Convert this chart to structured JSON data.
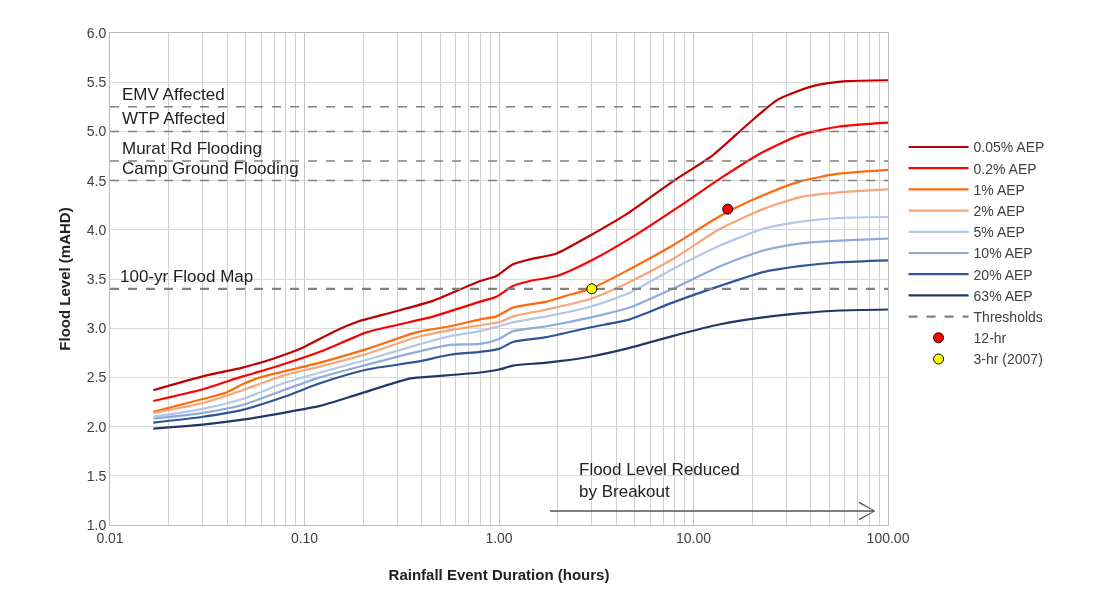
{
  "chart_data": {
    "type": "line",
    "xlabel": "Rainfall Event Duration (hours)",
    "ylabel": "Flood Level (mAHD)",
    "log": "x",
    "xlim": [
      0.01,
      100
    ],
    "ylim": [
      1.0,
      6.0
    ],
    "xticks": [
      {
        "value": 0.01,
        "label": "0.01"
      },
      {
        "value": 0.1,
        "label": "0.10"
      },
      {
        "value": 1,
        "label": "1.00"
      },
      {
        "value": 10,
        "label": "10.00"
      },
      {
        "value": 100,
        "label": "100.00"
      }
    ],
    "yticks": [
      {
        "value": 1,
        "label": "1.0"
      },
      {
        "value": 1.5,
        "label": "1.5"
      },
      {
        "value": 2,
        "label": "2.0"
      },
      {
        "value": 2.5,
        "label": "2.5"
      },
      {
        "value": 3,
        "label": "3.0"
      },
      {
        "value": 3.5,
        "label": "3.5"
      },
      {
        "value": 4,
        "label": "4.0"
      },
      {
        "value": 4.5,
        "label": "4.5"
      },
      {
        "value": 5,
        "label": "5.0"
      },
      {
        "value": 5.5,
        "label": "5.5"
      },
      {
        "value": 6,
        "label": "6.0"
      }
    ],
    "grid": true,
    "legend": "right",
    "marker": "none",
    "line_style": "solid",
    "series": [
      {
        "name": "0.05% AEP",
        "color": "#c00000",
        "x": [
          0.0167,
          0.03,
          0.048,
          0.069,
          0.095,
          0.14,
          0.19,
          0.28,
          0.46,
          0.8,
          0.97,
          1.18,
          1.44,
          1.98,
          2.93,
          4.7,
          7.8,
          12.6,
          18.7,
          27,
          41,
          61,
          100
        ],
        "values": [
          2.37,
          2.51,
          2.6,
          2.69,
          2.79,
          2.96,
          3.07,
          3.16,
          3.28,
          3.48,
          3.53,
          3.65,
          3.7,
          3.76,
          3.94,
          4.18,
          4.49,
          4.76,
          5.06,
          5.32,
          5.46,
          5.51,
          5.52
        ]
      },
      {
        "name": "0.2% AEP",
        "color": "#ff0000",
        "x": [
          0.0167,
          0.03,
          0.048,
          0.069,
          0.12,
          0.21,
          0.31,
          0.46,
          0.8,
          0.97,
          1.18,
          1.44,
          1.98,
          2.93,
          4.7,
          8.5,
          13.7,
          22.8,
          35,
          56,
          100
        ],
        "values": [
          2.26,
          2.38,
          2.51,
          2.6,
          2.76,
          2.96,
          3.04,
          3.12,
          3.27,
          3.32,
          3.43,
          3.48,
          3.53,
          3.68,
          3.91,
          4.24,
          4.52,
          4.79,
          4.96,
          5.05,
          5.09
        ]
      },
      {
        "name": "1% AEP",
        "color": "#ff6a0d",
        "x": [
          0.0167,
          0.03,
          0.04,
          0.048,
          0.059,
          0.078,
          0.12,
          0.21,
          0.38,
          0.56,
          0.8,
          0.97,
          1.18,
          1.76,
          2.4,
          2.97,
          4.7,
          7.8,
          13.7,
          22.8,
          35,
          56,
          100
        ],
        "values": [
          2.15,
          2.28,
          2.35,
          2.43,
          2.5,
          2.56,
          2.65,
          2.79,
          2.96,
          3.02,
          3.09,
          3.12,
          3.21,
          3.27,
          3.35,
          3.4,
          3.6,
          3.84,
          4.14,
          4.35,
          4.49,
          4.57,
          4.61
        ]
      },
      {
        "name": "2% AEP",
        "color": "#f8a57a",
        "x": [
          0.0167,
          0.03,
          0.048,
          0.078,
          0.12,
          0.21,
          0.38,
          0.56,
          0.8,
          1.0,
          1.18,
          1.76,
          2.97,
          4.7,
          7.8,
          13.7,
          22.8,
          35,
          56,
          100
        ],
        "values": [
          2.14,
          2.24,
          2.37,
          2.52,
          2.61,
          2.74,
          2.91,
          2.98,
          3.03,
          3.06,
          3.12,
          3.19,
          3.3,
          3.47,
          3.7,
          4.01,
          4.21,
          4.33,
          4.38,
          4.41
        ]
      },
      {
        "name": "5% AEP",
        "color": "#b4c7e7",
        "x": [
          0.0167,
          0.03,
          0.048,
          0.078,
          0.12,
          0.21,
          0.38,
          0.56,
          0.8,
          1.0,
          1.18,
          1.76,
          2.97,
          4.7,
          7.8,
          13.7,
          22.8,
          35,
          56,
          100
        ],
        "values": [
          2.1,
          2.18,
          2.28,
          2.44,
          2.55,
          2.68,
          2.83,
          2.92,
          2.97,
          3.02,
          3.06,
          3.12,
          3.22,
          3.36,
          3.6,
          3.84,
          4.01,
          4.08,
          4.12,
          4.13
        ]
      },
      {
        "name": "10% AEP",
        "color": "#8faadc",
        "x": [
          0.0167,
          0.03,
          0.048,
          0.078,
          0.12,
          0.21,
          0.38,
          0.56,
          0.8,
          1.0,
          1.18,
          1.76,
          2.97,
          4.7,
          7.8,
          13.7,
          22.8,
          35,
          56,
          100
        ],
        "values": [
          2.08,
          2.14,
          2.22,
          2.37,
          2.5,
          2.63,
          2.76,
          2.83,
          2.84,
          2.89,
          2.97,
          3.02,
          3.11,
          3.21,
          3.4,
          3.63,
          3.79,
          3.86,
          3.89,
          3.91
        ]
      },
      {
        "name": "20% AEP",
        "color": "#2f5597",
        "x": [
          0.0167,
          0.03,
          0.048,
          0.078,
          0.12,
          0.21,
          0.38,
          0.56,
          0.8,
          1.0,
          1.18,
          1.76,
          2.97,
          4.7,
          7.8,
          13.7,
          22.8,
          35,
          56,
          100
        ],
        "values": [
          2.04,
          2.1,
          2.17,
          2.3,
          2.44,
          2.58,
          2.66,
          2.73,
          2.76,
          2.79,
          2.86,
          2.91,
          3.01,
          3.09,
          3.26,
          3.43,
          3.57,
          3.63,
          3.67,
          3.69
        ]
      },
      {
        "name": "63% AEP",
        "color": "#1f3864",
        "x": [
          0.0167,
          0.03,
          0.048,
          0.078,
          0.12,
          0.19,
          0.35,
          0.46,
          0.8,
          1.0,
          1.18,
          1.76,
          2.93,
          4.7,
          7.8,
          13.7,
          22.8,
          35,
          56,
          100
        ],
        "values": [
          1.98,
          2.02,
          2.07,
          2.14,
          2.21,
          2.33,
          2.49,
          2.51,
          2.55,
          2.58,
          2.62,
          2.65,
          2.71,
          2.8,
          2.92,
          3.04,
          3.11,
          3.15,
          3.18,
          3.19
        ]
      },
      {
        "name": "Thresholds",
        "type": "line",
        "line_style": "dashed",
        "color": "#808080",
        "x": [
          0.01,
          100
        ],
        "values": [
          3.4,
          3.4
        ]
      },
      {
        "name": "12-hr",
        "type": "scatter",
        "marker": "circle",
        "color": "#ff0000",
        "x": [
          15
        ],
        "values": [
          4.21
        ]
      },
      {
        "name": "3-hr (2007)",
        "type": "scatter",
        "marker": "circle",
        "color": "#ffff00",
        "x": [
          3
        ],
        "values": [
          3.4
        ]
      }
    ],
    "ref_lines": [
      {
        "axis": "y",
        "value": 5.25,
        "label": "EMV Affected",
        "color": "#808080",
        "line_style": "dashed"
      },
      {
        "axis": "y",
        "value": 5.0,
        "label": "WTP Affected",
        "color": "#808080",
        "line_style": "dashed"
      },
      {
        "axis": "y",
        "value": 4.7,
        "label": "Murat Rd Flooding",
        "color": "#808080",
        "line_style": "dashed"
      },
      {
        "axis": "y",
        "value": 4.5,
        "label": "Camp Ground Flooding",
        "color": "#808080",
        "line_style": "dashed"
      }
    ],
    "annotations": [
      {
        "text": "100-yr Flood Map",
        "x": 0.011,
        "y": 3.4
      },
      "Flood Level Reduced\nby Breakout"
    ]
  }
}
